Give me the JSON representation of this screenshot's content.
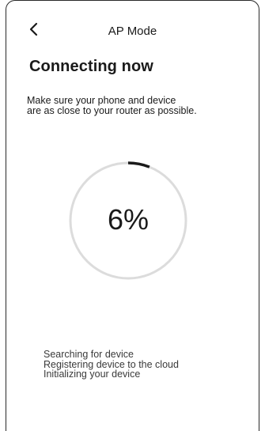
{
  "header": {
    "title": "AP Mode",
    "back_icon": "chevron-left-icon"
  },
  "main": {
    "heading": "Connecting now",
    "instruction_lines": [
      "Make sure your phone and device",
      "are as close to your router as possible."
    ],
    "progress": {
      "percent": 6,
      "label": "6%"
    },
    "status_steps": [
      "Searching for device",
      "Registering device to the cloud",
      "Initializing your device"
    ]
  },
  "colors": {
    "ring_track": "#dcdcdc",
    "ring_progress": "#1a1a1a",
    "text": "#1a1a1a"
  }
}
